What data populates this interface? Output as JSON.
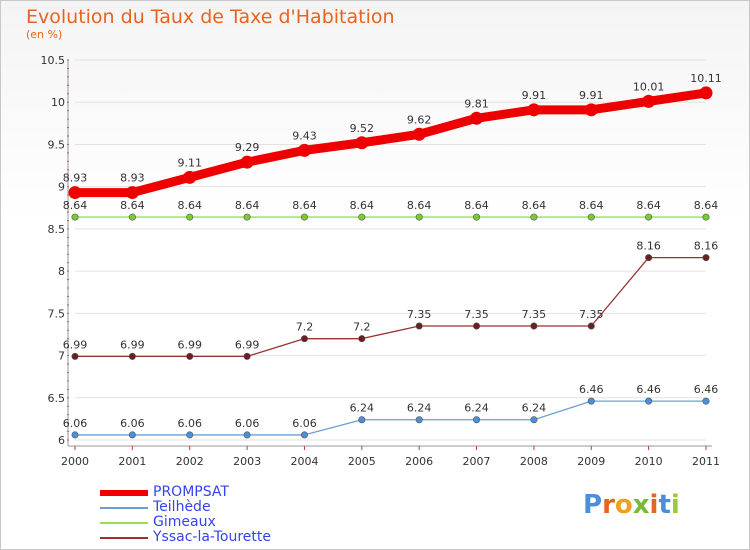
{
  "header": {
    "title": "Evolution du Taux de Taxe d'Habitation",
    "subtitle": "(en %)"
  },
  "logo": {
    "text": "Proxiti"
  },
  "colors": {
    "title": "#e8641e",
    "grid": "#dddddd",
    "axis": "#888888"
  },
  "chart_data": {
    "type": "line",
    "x": [
      "2000",
      "2001",
      "2002",
      "2003",
      "2004",
      "2005",
      "2006",
      "2007",
      "2008",
      "2009",
      "2010",
      "2011"
    ],
    "ylim": [
      6,
      10.5
    ],
    "yticks": [
      "6",
      "6.5",
      "7",
      "7.5",
      "8",
      "8.5",
      "9",
      "9.5",
      "10",
      "10.5"
    ],
    "grid": true,
    "legend_position": "bottom-left",
    "series": [
      {
        "name": "PROMPSAT",
        "color": "#ee0000",
        "values": [
          8.93,
          8.93,
          9.11,
          9.29,
          9.43,
          9.52,
          9.62,
          9.81,
          9.91,
          9.91,
          10.01,
          10.11
        ],
        "labels": [
          "8.93",
          "8.93",
          "9.11",
          "9.29",
          "9.43",
          "9.52",
          "9.62",
          "9.81",
          "9.91",
          "9.91",
          "10.01",
          "10.11"
        ]
      },
      {
        "name": "Teilhède",
        "color": "#6ca0d0",
        "marker": "#4a90d9",
        "values": [
          6.06,
          6.06,
          6.06,
          6.06,
          6.06,
          6.24,
          6.24,
          6.24,
          6.24,
          6.46,
          6.46,
          6.46
        ],
        "labels": [
          "6.06",
          "6.06",
          "6.06",
          "6.06",
          "6.06",
          "6.24",
          "6.24",
          "6.24",
          "6.24",
          "6.46",
          "6.46",
          "6.46"
        ]
      },
      {
        "name": "Gimeaux",
        "color": "#99dd55",
        "marker": "#77cc33",
        "values": [
          8.64,
          8.64,
          8.64,
          8.64,
          8.64,
          8.64,
          8.64,
          8.64,
          8.64,
          8.64,
          8.64,
          8.64
        ],
        "labels": [
          "8.64",
          "8.64",
          "8.64",
          "8.64",
          "8.64",
          "8.64",
          "8.64",
          "8.64",
          "8.64",
          "8.64",
          "8.64",
          "8.64"
        ]
      },
      {
        "name": "Yssac-la-Tourette",
        "color": "#993333",
        "marker": "#6b1f1f",
        "values": [
          6.99,
          6.99,
          6.99,
          6.99,
          7.2,
          7.2,
          7.35,
          7.35,
          7.35,
          7.35,
          8.16,
          8.16
        ],
        "labels": [
          "6.99",
          "6.99",
          "6.99",
          "6.99",
          "7.2",
          "7.2",
          "7.35",
          "7.35",
          "7.35",
          "7.35",
          "8.16",
          "8.16"
        ]
      }
    ]
  }
}
